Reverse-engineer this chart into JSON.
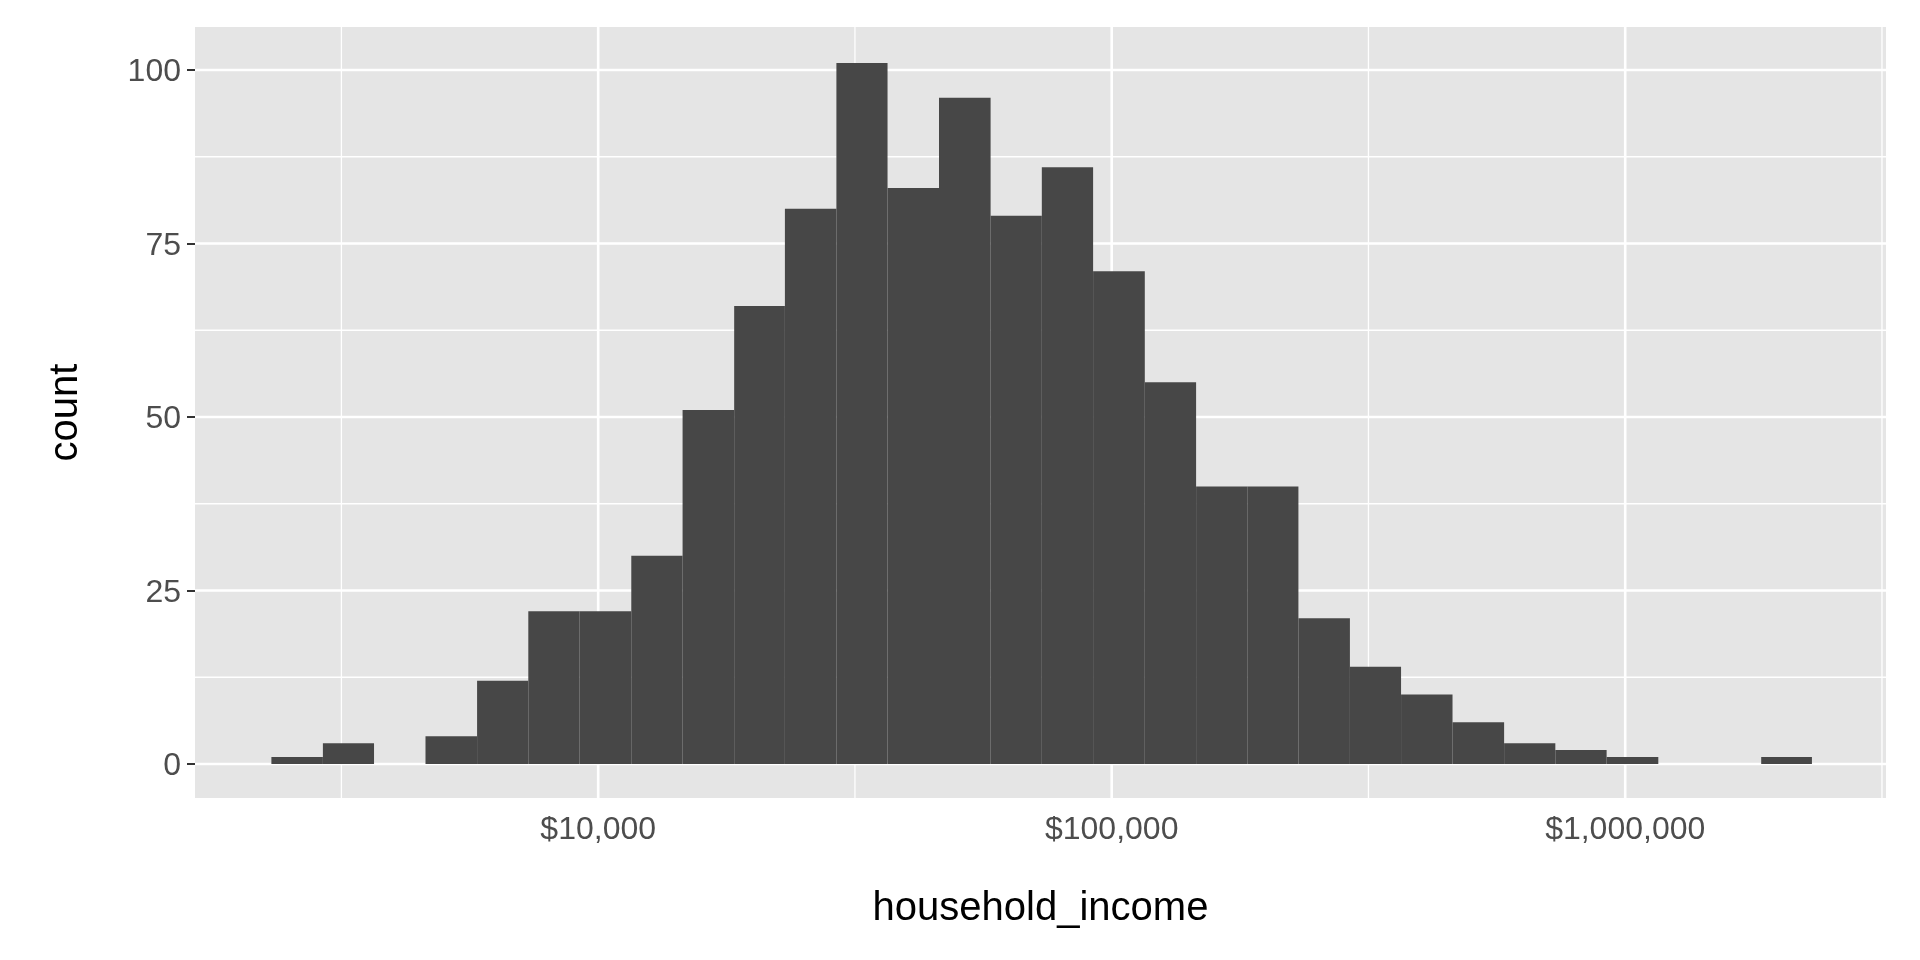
{
  "chart_data": {
    "type": "histogram",
    "xlabel": "household_income",
    "ylabel": "count",
    "log": "x",
    "grid": true,
    "color": "#474747",
    "bins": [
      2310,
      2910,
      3660,
      4610,
      5810,
      7310,
      9200,
      11600,
      14600,
      18400,
      23100,
      29100,
      36600,
      46100,
      58100,
      73100,
      92000,
      116000,
      146000,
      184000,
      231000,
      291000,
      366000,
      461000,
      581000,
      731000,
      920000,
      1160000,
      1840000,
      2310000
    ],
    "values": [
      1,
      3,
      0,
      4,
      12,
      22,
      22,
      30,
      51,
      66,
      80,
      101,
      83,
      96,
      79,
      86,
      71,
      55,
      40,
      40,
      21,
      14,
      10,
      6,
      3,
      2,
      1,
      0,
      1
    ],
    "xlim": [
      1640,
      3220000
    ],
    "xticks": [
      {
        "value": 3162,
        "label": null
      },
      {
        "value": 10000,
        "label": "$10,000"
      },
      {
        "value": 31623,
        "label": null
      },
      {
        "value": 100000,
        "label": "$100,000"
      },
      {
        "value": 316228,
        "label": null
      },
      {
        "value": 1000000,
        "label": "$1,000,000"
      },
      {
        "value": 3162278,
        "label": null
      }
    ],
    "ylim": [
      -4.9,
      106.2
    ],
    "yticks": [
      0,
      {
        "value": 12.5,
        "label": null
      },
      25,
      {
        "value": 37.5,
        "label": null
      },
      50,
      {
        "value": 62.5,
        "label": null
      },
      75,
      {
        "value": 87.5,
        "label": null
      },
      100
    ]
  }
}
